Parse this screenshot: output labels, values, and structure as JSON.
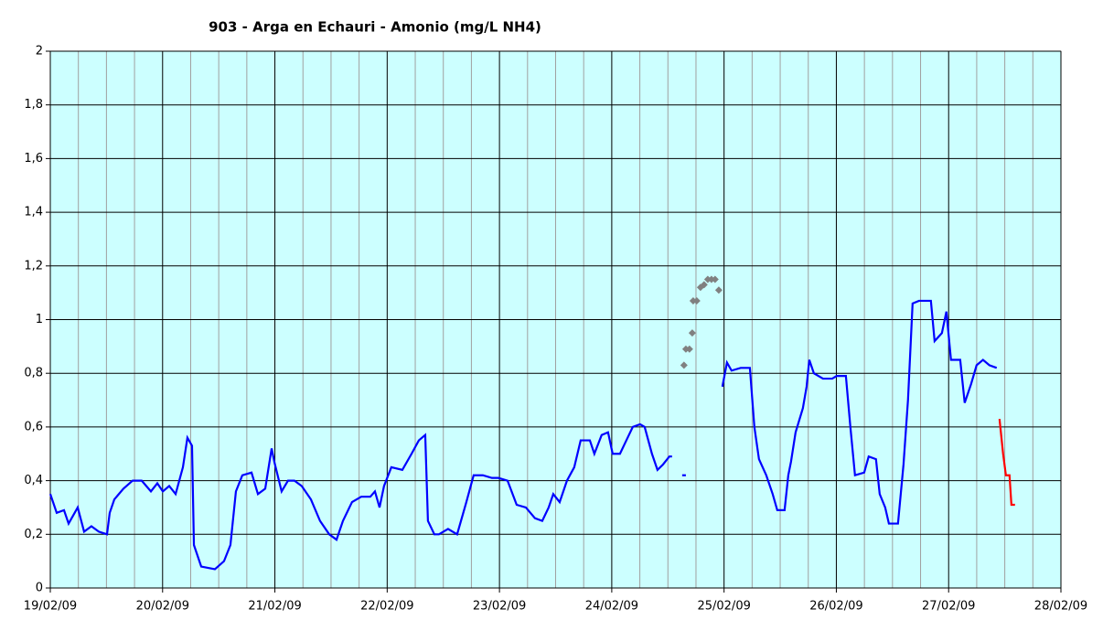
{
  "chart_data": {
    "type": "line",
    "title": "903 - Arga en Echauri - Amonio (mg/L NH4)",
    "xlim": [
      0,
      9
    ],
    "xticks": [
      {
        "value": 0,
        "label": "19/02/09"
      },
      {
        "value": 1,
        "label": "20/02/09"
      },
      {
        "value": 2,
        "label": "21/02/09"
      },
      {
        "value": 3,
        "label": "22/02/09"
      },
      {
        "value": 4,
        "label": "23/02/09"
      },
      {
        "value": 5,
        "label": "24/02/09"
      },
      {
        "value": 6,
        "label": "25/02/09"
      },
      {
        "value": 7,
        "label": "26/02/09"
      },
      {
        "value": 8,
        "label": "27/02/09"
      },
      {
        "value": 9,
        "label": "28/02/09"
      }
    ],
    "ylim": [
      0,
      2
    ],
    "yticks": [
      0,
      {
        "value": 0.2,
        "label": "0,2"
      },
      {
        "value": 0.4,
        "label": "0,4"
      },
      {
        "value": 0.6,
        "label": "0,6"
      },
      {
        "value": 0.8,
        "label": "0,8"
      },
      1,
      {
        "value": 1.2,
        "label": "1,2"
      },
      {
        "value": 1.4,
        "label": "1,4"
      },
      {
        "value": 1.6,
        "label": "1,6"
      },
      {
        "value": 1.8,
        "label": "1,8"
      },
      2
    ],
    "grid": true,
    "background": "#ccffff",
    "series": [
      {
        "type": "line",
        "color": "#0000ff",
        "x": [
          0,
          0.057,
          0.122,
          0.163,
          0.244,
          0.301,
          0.366,
          0.432,
          0.505,
          0.529,
          0.57,
          0.651,
          0.733,
          0.814,
          0.896,
          0.953,
          1.002,
          1.059,
          1.116,
          1.181,
          1.221,
          1.262,
          1.279,
          1.344,
          1.466,
          1.547,
          1.604,
          1.653,
          1.71,
          1.792,
          1.849,
          1.914,
          1.971,
          1.995,
          2.06,
          2.117,
          2.174,
          2.239,
          2.321,
          2.402,
          2.484,
          2.549,
          2.606,
          2.687,
          2.769,
          2.85,
          2.891,
          2.932,
          2.972,
          3.037,
          3.135,
          3.217,
          3.282,
          3.339,
          3.363,
          3.42,
          3.461,
          3.542,
          3.623,
          3.705,
          3.77,
          3.852,
          3.933,
          3.99,
          4.072,
          4.153,
          4.235,
          4.316,
          4.381,
          4.438,
          4.479,
          4.536,
          4.601,
          4.666,
          4.723,
          4.805,
          4.845,
          4.91,
          4.967,
          5.008,
          5.073,
          5.13,
          5.187,
          5.252,
          5.293,
          5.358,
          5.407,
          5.456,
          5.513,
          5.537,
          null,
          5.627,
          5.66,
          null,
          5.985,
          6.026,
          6.067,
          6.148,
          6.23,
          6.27,
          6.311,
          6.376,
          6.433,
          6.474,
          6.539,
          6.572,
          6.596,
          6.637,
          6.702,
          6.735,
          6.759,
          6.8,
          6.881,
          6.963,
          7.003,
          7.085,
          7.125,
          7.166,
          7.248,
          7.288,
          7.353,
          7.386,
          7.435,
          7.468,
          7.549,
          7.598,
          7.638,
          7.679,
          7.736,
          7.842,
          7.875,
          7.94,
          7.98,
          8.021,
          8.103,
          8.143,
          8.2,
          8.249,
          8.306,
          8.363,
          8.428
        ],
        "values": [
          0.35,
          0.28,
          0.29,
          0.24,
          0.3,
          0.21,
          0.23,
          0.21,
          0.2,
          0.28,
          0.33,
          0.37,
          0.4,
          0.4,
          0.36,
          0.39,
          0.36,
          0.38,
          0.35,
          0.45,
          0.56,
          0.53,
          0.16,
          0.08,
          0.07,
          0.1,
          0.16,
          0.36,
          0.42,
          0.43,
          0.35,
          0.37,
          0.52,
          0.47,
          0.36,
          0.4,
          0.4,
          0.38,
          0.33,
          0.25,
          0.2,
          0.18,
          0.25,
          0.32,
          0.34,
          0.34,
          0.36,
          0.3,
          0.38,
          0.45,
          0.44,
          0.5,
          0.55,
          0.57,
          0.25,
          0.2,
          0.2,
          0.22,
          0.2,
          0.32,
          0.42,
          0.42,
          0.41,
          0.41,
          0.4,
          0.31,
          0.3,
          0.26,
          0.25,
          0.3,
          0.35,
          0.32,
          0.4,
          0.45,
          0.55,
          0.55,
          0.5,
          0.57,
          0.58,
          0.5,
          0.5,
          0.55,
          0.6,
          0.61,
          0.6,
          0.5,
          0.44,
          0.46,
          0.49,
          0.49,
          null,
          0.42,
          0.42,
          null,
          0.75,
          0.84,
          0.81,
          0.82,
          0.82,
          0.6,
          0.48,
          0.42,
          0.35,
          0.29,
          0.29,
          0.42,
          0.47,
          0.58,
          0.67,
          0.75,
          0.85,
          0.8,
          0.78,
          0.78,
          0.79,
          0.79,
          0.6,
          0.42,
          0.43,
          0.49,
          0.48,
          0.35,
          0.3,
          0.24,
          0.24,
          0.46,
          0.7,
          1.06,
          1.07,
          1.07,
          0.92,
          0.95,
          1.03,
          0.85,
          0.85,
          0.69,
          0.76,
          0.83,
          0.85,
          0.83,
          0.82
        ]
      },
      {
        "type": "scatter",
        "color": "#808080",
        "x": [
          5.643,
          5.66,
          5.692,
          5.717,
          5.725,
          5.757,
          5.79,
          5.822,
          5.855,
          5.888,
          5.92,
          5.953
        ],
        "values": [
          0.83,
          0.89,
          0.89,
          0.95,
          1.07,
          1.07,
          1.12,
          1.13,
          1.15,
          1.15,
          1.15,
          1.11
        ]
      },
      {
        "type": "line",
        "color": "#ff0000",
        "x": [
          8.453,
          8.485,
          8.51,
          8.542,
          8.559,
          8.591
        ],
        "values": [
          0.63,
          0.5,
          0.42,
          0.42,
          0.31,
          0.31
        ]
      }
    ]
  }
}
